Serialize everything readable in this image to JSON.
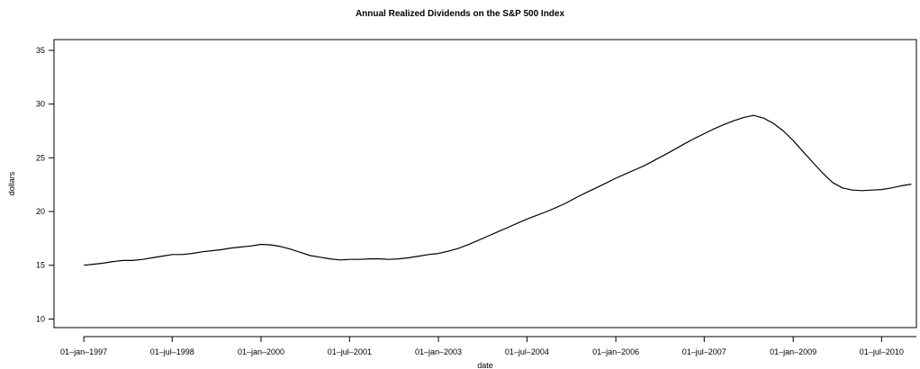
{
  "chart_data": {
    "type": "line",
    "title": "Annual Realized Dividends on the S&P 500 Index",
    "xlabel": "date",
    "ylabel": "dollars",
    "xlim": [
      "1996-07-01",
      "2011-02-01"
    ],
    "ylim": [
      9.2,
      36.0
    ],
    "x_ticks": [
      "1997-01-01",
      "1998-07-01",
      "2000-01-01",
      "2001-07-01",
      "2003-01-01",
      "2004-07-01",
      "2006-01-01",
      "2007-07-01",
      "2009-01-01",
      "2010-07-01"
    ],
    "x_tick_labels": [
      "01–jan–1997",
      "01–jul–1998",
      "01–jan–2000",
      "01–jul–2001",
      "01–jan–2003",
      "01–jul–2004",
      "01–jan–2006",
      "01–jul–2007",
      "01–jan–2009",
      "01–jul–2010"
    ],
    "y_ticks": [
      10,
      15,
      20,
      25,
      30,
      35
    ],
    "y_tick_labels": [
      "10",
      "15",
      "20",
      "25",
      "30",
      "35"
    ],
    "grid": false,
    "line_color": "#000000",
    "x": [
      "1997-01",
      "1997-03",
      "1997-05",
      "1997-07",
      "1997-09",
      "1997-11",
      "1998-01",
      "1998-03",
      "1998-05",
      "1998-07",
      "1998-09",
      "1998-11",
      "1999-01",
      "1999-03",
      "1999-05",
      "1999-07",
      "1999-09",
      "1999-11",
      "2000-01",
      "2000-03",
      "2000-05",
      "2000-07",
      "2000-09",
      "2000-11",
      "2001-01",
      "2001-03",
      "2001-05",
      "2001-07",
      "2001-09",
      "2001-11",
      "2002-01",
      "2002-03",
      "2002-05",
      "2002-07",
      "2002-09",
      "2002-11",
      "2003-01",
      "2003-03",
      "2003-05",
      "2003-07",
      "2003-09",
      "2003-11",
      "2004-01",
      "2004-03",
      "2004-05",
      "2004-07",
      "2004-09",
      "2004-11",
      "2005-01",
      "2005-03",
      "2005-05",
      "2005-07",
      "2005-09",
      "2005-11",
      "2006-01",
      "2006-03",
      "2006-05",
      "2006-07",
      "2006-09",
      "2006-11",
      "2007-01",
      "2007-03",
      "2007-05",
      "2007-07",
      "2007-09",
      "2007-11",
      "2008-01",
      "2008-03",
      "2008-05",
      "2008-07",
      "2008-09",
      "2008-11",
      "2009-01",
      "2009-03",
      "2009-05",
      "2009-07",
      "2009-09",
      "2009-11",
      "2010-01",
      "2010-03",
      "2010-05",
      "2010-07",
      "2010-09",
      "2010-11",
      "2011-01"
    ],
    "y": [
      15.0,
      15.1,
      15.2,
      15.35,
      15.45,
      15.45,
      15.55,
      15.7,
      15.85,
      16.0,
      16.0,
      16.1,
      16.25,
      16.35,
      16.45,
      16.6,
      16.7,
      16.8,
      16.95,
      16.9,
      16.75,
      16.5,
      16.2,
      15.9,
      15.75,
      15.6,
      15.5,
      15.55,
      15.55,
      15.6,
      15.6,
      15.55,
      15.6,
      15.7,
      15.85,
      16.0,
      16.1,
      16.3,
      16.55,
      16.9,
      17.3,
      17.7,
      18.1,
      18.5,
      18.9,
      19.3,
      19.65,
      20.0,
      20.4,
      20.8,
      21.3,
      21.75,
      22.2,
      22.65,
      23.1,
      23.5,
      23.9,
      24.3,
      24.8,
      25.3,
      25.8,
      26.3,
      26.8,
      27.25,
      27.7,
      28.1,
      28.45,
      28.75,
      28.95,
      28.7,
      28.2,
      27.5,
      26.6,
      25.6,
      24.6,
      23.6,
      22.7,
      22.2,
      22.0,
      21.95,
      22.0,
      22.05,
      22.2,
      22.4,
      22.55
    ]
  }
}
